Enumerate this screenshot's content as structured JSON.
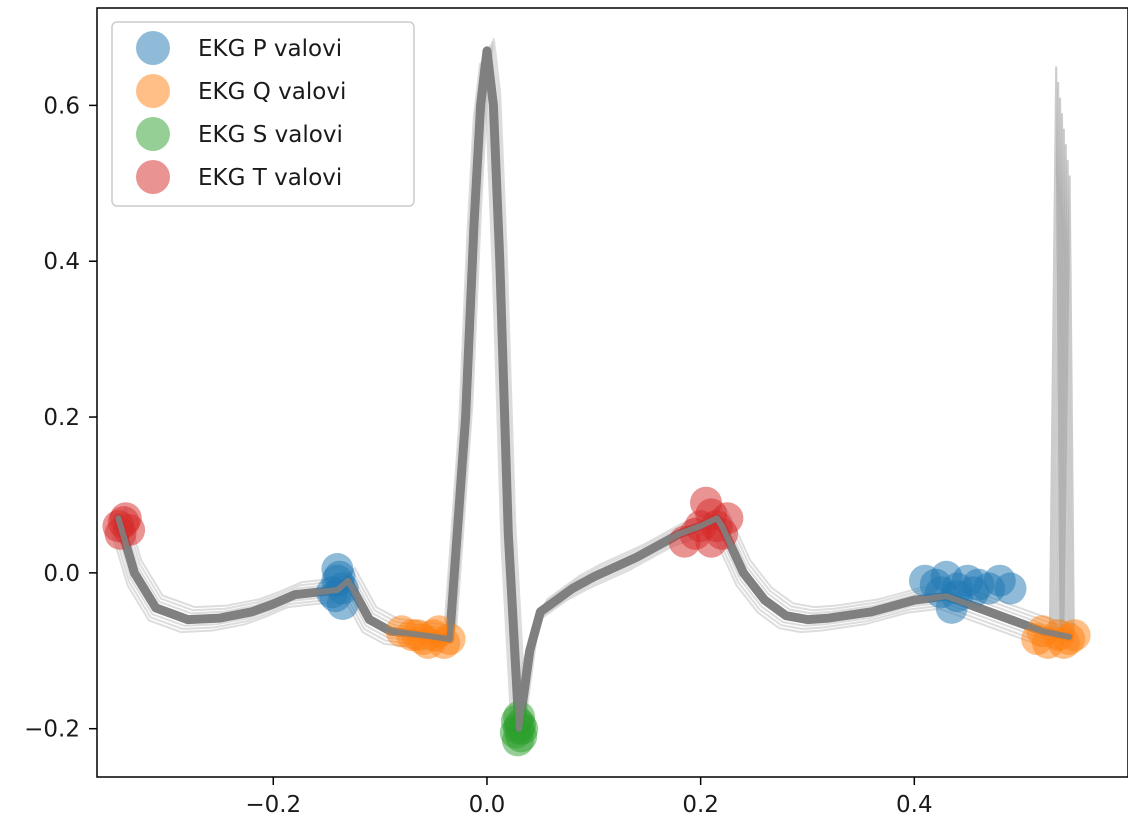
{
  "chart_data": {
    "type": "line",
    "title": "",
    "xlabel": "",
    "ylabel": "",
    "xlim": [
      -0.365,
      0.6
    ],
    "ylim": [
      -0.262,
      0.725
    ],
    "x_ticks": [
      -0.2,
      0.0,
      0.2,
      0.4
    ],
    "x_tick_labels": [
      "−0.2",
      "0.0",
      "0.2",
      "0.4"
    ],
    "y_ticks": [
      -0.2,
      0.0,
      0.2,
      0.4,
      0.6
    ],
    "y_tick_labels": [
      "−0.2",
      "0.0",
      "0.2",
      "0.4",
      "0.6"
    ],
    "grid": false,
    "legend_position": "top-left",
    "trace_color": "#808080",
    "mean_trace": {
      "x": [
        -0.345,
        -0.33,
        -0.31,
        -0.28,
        -0.25,
        -0.22,
        -0.2,
        -0.18,
        -0.16,
        -0.14,
        -0.13,
        -0.11,
        -0.09,
        -0.06,
        -0.035,
        -0.02,
        -0.012,
        -0.006,
        0.0,
        0.006,
        0.012,
        0.02,
        0.03,
        0.04,
        0.05,
        0.06,
        0.08,
        0.1,
        0.14,
        0.18,
        0.2,
        0.215,
        0.22,
        0.24,
        0.26,
        0.28,
        0.3,
        0.32,
        0.36,
        0.4,
        0.43,
        0.46,
        0.49,
        0.52,
        0.545
      ],
      "y": [
        0.07,
        0.0,
        -0.045,
        -0.06,
        -0.058,
        -0.05,
        -0.04,
        -0.028,
        -0.025,
        -0.022,
        -0.01,
        -0.06,
        -0.075,
        -0.08,
        -0.085,
        0.2,
        0.45,
        0.6,
        0.67,
        0.6,
        0.4,
        0.05,
        -0.2,
        -0.1,
        -0.05,
        -0.04,
        -0.02,
        -0.005,
        0.02,
        0.05,
        0.06,
        0.07,
        0.06,
        0.0,
        -0.035,
        -0.055,
        -0.06,
        -0.058,
        -0.05,
        -0.035,
        -0.03,
        -0.045,
        -0.06,
        -0.075,
        -0.082
      ]
    },
    "end_spike": {
      "x": 0.54,
      "y_min": -0.08,
      "y_max": 0.65
    },
    "series": [
      {
        "name": "EKG P valovi",
        "color": "#1f77b4",
        "points": [
          [
            -0.14,
            -0.01
          ],
          [
            -0.135,
            -0.02
          ],
          [
            -0.145,
            -0.025
          ],
          [
            -0.138,
            -0.005
          ],
          [
            -0.142,
            -0.03
          ],
          [
            -0.135,
            -0.04
          ],
          [
            -0.14,
            0.005
          ],
          [
            0.41,
            -0.01
          ],
          [
            0.42,
            -0.015
          ],
          [
            0.43,
            -0.005
          ],
          [
            0.44,
            -0.02
          ],
          [
            0.45,
            -0.01
          ],
          [
            0.46,
            -0.015
          ],
          [
            0.47,
            -0.02
          ],
          [
            0.48,
            -0.01
          ],
          [
            0.49,
            -0.02
          ],
          [
            0.435,
            -0.045
          ],
          [
            0.44,
            -0.03
          ],
          [
            0.425,
            -0.025
          ],
          [
            0.455,
            -0.025
          ]
        ]
      },
      {
        "name": "EKG Q valovi",
        "color": "#ff7f0e",
        "points": [
          [
            -0.08,
            -0.075
          ],
          [
            -0.07,
            -0.08
          ],
          [
            -0.06,
            -0.085
          ],
          [
            -0.05,
            -0.08
          ],
          [
            -0.04,
            -0.09
          ],
          [
            -0.035,
            -0.085
          ],
          [
            -0.045,
            -0.075
          ],
          [
            -0.055,
            -0.09
          ],
          [
            -0.065,
            -0.08
          ],
          [
            0.515,
            -0.085
          ],
          [
            0.525,
            -0.09
          ],
          [
            0.535,
            -0.08
          ],
          [
            0.545,
            -0.085
          ],
          [
            0.55,
            -0.08
          ],
          [
            0.52,
            -0.075
          ],
          [
            0.54,
            -0.09
          ]
        ]
      },
      {
        "name": "EKG S valovi",
        "color": "#2ca02c",
        "points": [
          [
            0.028,
            -0.19
          ],
          [
            0.03,
            -0.2
          ],
          [
            0.032,
            -0.21
          ],
          [
            0.029,
            -0.215
          ],
          [
            0.031,
            -0.195
          ],
          [
            0.027,
            -0.205
          ],
          [
            0.033,
            -0.2
          ],
          [
            0.03,
            -0.185
          ]
        ]
      },
      {
        "name": "EKG T valovi",
        "color": "#d62728",
        "points": [
          [
            -0.345,
            0.06
          ],
          [
            -0.34,
            0.065
          ],
          [
            -0.335,
            0.055
          ],
          [
            -0.343,
            0.05
          ],
          [
            -0.338,
            0.07
          ],
          [
            0.205,
            0.09
          ],
          [
            0.21,
            0.075
          ],
          [
            0.215,
            0.06
          ],
          [
            0.22,
            0.05
          ],
          [
            0.21,
            0.04
          ],
          [
            0.2,
            0.06
          ],
          [
            0.225,
            0.07
          ],
          [
            0.185,
            0.04
          ],
          [
            0.195,
            0.05
          ]
        ]
      }
    ]
  }
}
